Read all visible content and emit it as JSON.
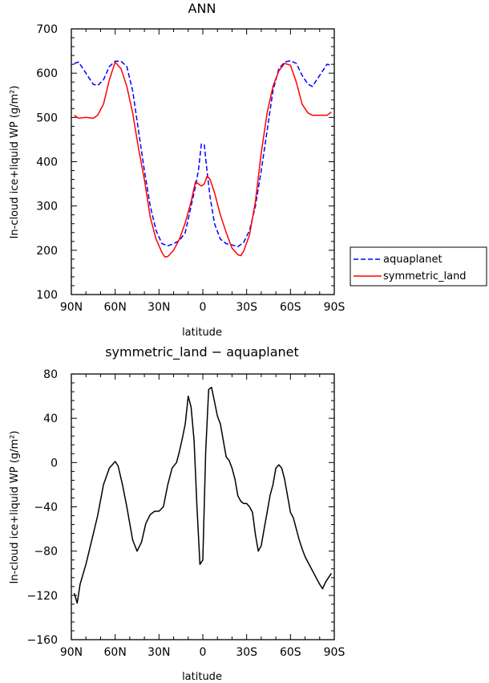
{
  "chart_data": [
    {
      "type": "line",
      "title": "ANN",
      "xlabel": "latitude",
      "ylabel": "In-cloud ice+liquid WP (g/m²)",
      "xlim": [
        -90,
        90
      ],
      "ylim": [
        100,
        700
      ],
      "xticks": [
        -90,
        -60,
        -30,
        0,
        30,
        60,
        90
      ],
      "xtick_labels": [
        "90N",
        "60N",
        "30N",
        "0",
        "30S",
        "60S",
        "90S"
      ],
      "yticks": [
        100,
        200,
        300,
        400,
        500,
        600,
        700
      ],
      "ytick_labels": [
        "100",
        "200",
        "300",
        "400",
        "500",
        "600",
        "700"
      ],
      "legend_position": "right",
      "series": [
        {
          "name": "aquaplanet",
          "color": "#0000ff",
          "dash": "dashed",
          "x": [
            -88,
            -85,
            -80,
            -75,
            -72,
            -68,
            -64,
            -60,
            -56,
            -52,
            -48,
            -44,
            -40,
            -36,
            -32,
            -28,
            -24,
            -20,
            -16,
            -12,
            -8,
            -5,
            -3,
            -1,
            1,
            3,
            5,
            8,
            12,
            16,
            20,
            24,
            28,
            32,
            36,
            40,
            44,
            48,
            52,
            56,
            60,
            64,
            68,
            72,
            75,
            80,
            85,
            88
          ],
          "y": [
            622,
            625,
            600,
            575,
            572,
            585,
            615,
            627,
            627,
            615,
            560,
            470,
            380,
            300,
            245,
            215,
            210,
            215,
            222,
            240,
            300,
            345,
            380,
            440,
            438,
            375,
            320,
            260,
            225,
            215,
            212,
            208,
            218,
            245,
            300,
            380,
            470,
            560,
            610,
            625,
            628,
            622,
            595,
            575,
            570,
            595,
            620,
            618
          ]
        },
        {
          "name": "symmetric_land",
          "color": "#ff0000",
          "dash": "solid",
          "x": [
            -88,
            -85,
            -80,
            -75,
            -72,
            -68,
            -64,
            -60,
            -56,
            -52,
            -48,
            -44,
            -40,
            -36,
            -32,
            -28,
            -26,
            -24,
            -20,
            -16,
            -12,
            -8,
            -5,
            -3,
            -1,
            1,
            3,
            5,
            8,
            12,
            16,
            20,
            24,
            26,
            28,
            32,
            36,
            40,
            44,
            48,
            52,
            56,
            60,
            64,
            68,
            72,
            75,
            80,
            85,
            88
          ],
          "y": [
            505,
            498,
            500,
            498,
            505,
            530,
            585,
            625,
            610,
            570,
            510,
            430,
            360,
            275,
            225,
            195,
            185,
            186,
            200,
            225,
            262,
            310,
            355,
            350,
            345,
            350,
            368,
            360,
            330,
            280,
            240,
            205,
            190,
            188,
            198,
            235,
            310,
            420,
            510,
            570,
            605,
            622,
            618,
            580,
            530,
            510,
            505,
            505,
            505,
            512
          ]
        }
      ]
    },
    {
      "type": "line",
      "title": "symmetric_land − aquaplanet",
      "xlabel": "latitude",
      "ylabel": "In-cloud ice+liquid WP (g/m²)",
      "xlim": [
        -90,
        90
      ],
      "ylim": [
        -160,
        80
      ],
      "xticks": [
        -90,
        -60,
        -30,
        0,
        30,
        60,
        90
      ],
      "xtick_labels": [
        "90N",
        "60N",
        "30N",
        "0",
        "30S",
        "60S",
        "90S"
      ],
      "yticks": [
        -160,
        -120,
        -80,
        -40,
        0,
        40,
        80
      ],
      "ytick_labels": [
        "−160",
        "−120",
        "−80",
        "−40",
        "0",
        "40",
        "80"
      ],
      "series": [
        {
          "color": "#000000",
          "dash": "solid",
          "x": [
            -88,
            -86,
            -84,
            -80,
            -76,
            -72,
            -68,
            -64,
            -60,
            -58,
            -55,
            -52,
            -48,
            -45,
            -42,
            -39,
            -36,
            -33,
            -30,
            -27,
            -24,
            -21,
            -18,
            -16,
            -14,
            -12,
            -10,
            -8,
            -6,
            -4,
            -2,
            0,
            2,
            4,
            6,
            8,
            10,
            12,
            14,
            16,
            18,
            20,
            22,
            24,
            26,
            28,
            30,
            32,
            34,
            36,
            38,
            40,
            42,
            44,
            46,
            48,
            50,
            52,
            54,
            56,
            58,
            60,
            62,
            64,
            66,
            68,
            70,
            72,
            74,
            76,
            78,
            80,
            82,
            84,
            86,
            88
          ],
          "y": [
            -118,
            -127,
            -110,
            -92,
            -70,
            -48,
            -20,
            -5,
            1,
            -3,
            -20,
            -40,
            -70,
            -80,
            -72,
            -55,
            -47,
            -44,
            -44,
            -40,
            -20,
            -5,
            0,
            10,
            22,
            35,
            60,
            50,
            20,
            -40,
            -92,
            -88,
            10,
            66,
            68,
            55,
            42,
            35,
            20,
            5,
            2,
            -5,
            -15,
            -30,
            -35,
            -37,
            -37,
            -40,
            -45,
            -65,
            -80,
            -75,
            -60,
            -45,
            -30,
            -20,
            -5,
            -2,
            -5,
            -15,
            -30,
            -45,
            -50,
            -60,
            -70,
            -78,
            -85,
            -90,
            -95,
            -100,
            -105,
            -110,
            -114,
            -108,
            -104,
            -100
          ]
        }
      ]
    }
  ]
}
